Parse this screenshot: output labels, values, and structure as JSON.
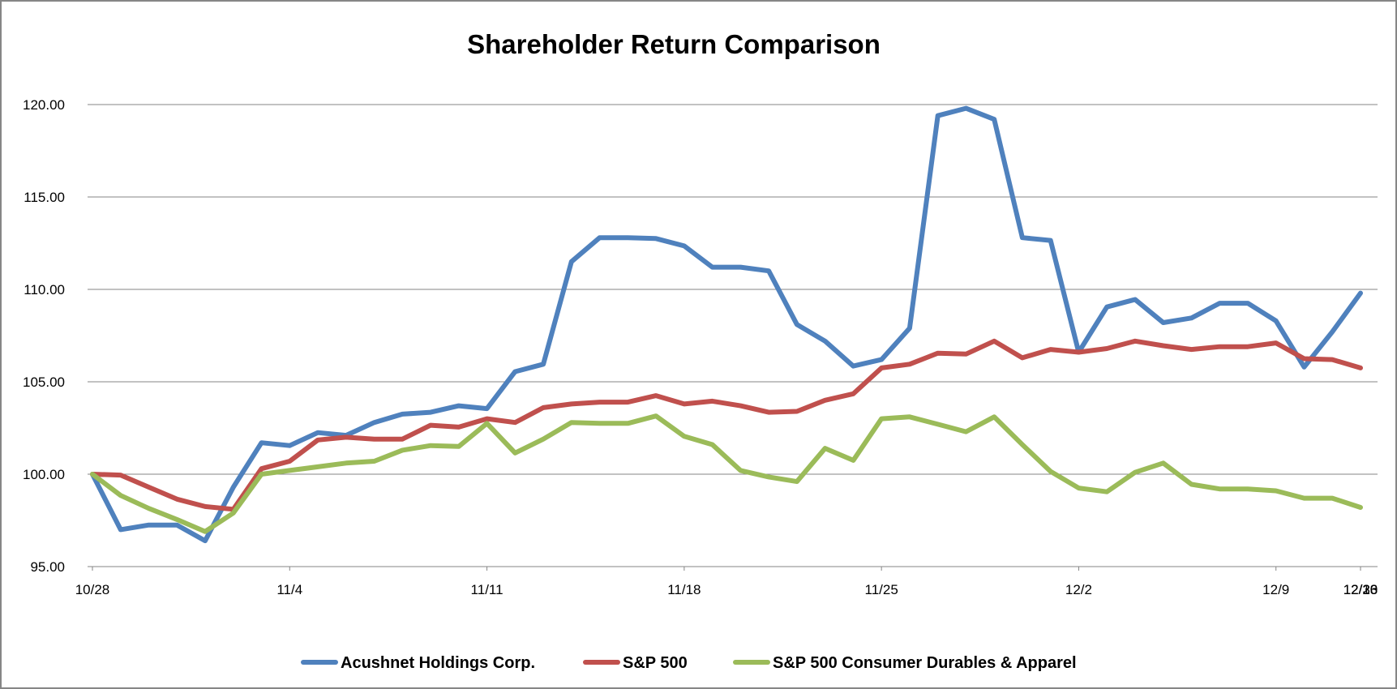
{
  "chart_data": {
    "type": "line",
    "title": "Shareholder Return Comparison",
    "xlabel": "",
    "ylabel": "",
    "ylim": [
      95,
      120
    ],
    "yticks": [
      "95.00",
      "100.00",
      "105.00",
      "110.00",
      "115.00",
      "120.00"
    ],
    "xticks": [
      "10/28",
      "11/4",
      "11/11",
      "11/18",
      "11/25",
      "12/2",
      "12/9",
      "12/16",
      "12/23",
      "12/30"
    ],
    "grid": "horizontal",
    "legend_position": "bottom",
    "series": [
      {
        "name": "Acushnet Holdings Corp.",
        "color": "#4F81BD",
        "values": [
          100.0,
          97.0,
          97.25,
          97.25,
          96.4,
          99.3,
          101.7,
          101.55,
          102.25,
          102.1,
          102.8,
          103.25,
          103.35,
          103.7,
          103.55,
          105.55,
          105.95,
          111.5,
          112.8,
          112.8,
          112.75,
          112.35,
          111.2,
          111.2,
          111.0,
          108.1,
          107.2,
          105.85,
          106.2,
          107.9,
          119.4,
          119.8,
          119.2,
          112.8,
          112.65,
          106.6,
          109.05,
          109.45,
          108.2,
          108.45,
          109.25,
          109.25,
          108.3,
          105.8,
          107.7,
          109.8
        ]
      },
      {
        "name": "S&P 500",
        "color": "#C0504D",
        "values": [
          100.0,
          99.95,
          99.3,
          98.65,
          98.25,
          98.1,
          100.3,
          100.7,
          101.85,
          102.0,
          101.9,
          101.9,
          102.65,
          102.55,
          103.0,
          102.8,
          103.6,
          103.8,
          103.9,
          103.9,
          104.25,
          103.8,
          103.95,
          103.7,
          103.35,
          103.4,
          104.0,
          104.35,
          105.75,
          105.95,
          106.55,
          106.5,
          107.2,
          106.3,
          106.75,
          106.6,
          106.8,
          107.2,
          106.95,
          106.75,
          106.9,
          106.9,
          107.1,
          106.25,
          106.2,
          105.75
        ]
      },
      {
        "name": "S&P 500 Consumer Durables & Apparel",
        "color": "#9BBB59",
        "values": [
          100.0,
          98.85,
          98.15,
          97.55,
          96.9,
          97.9,
          100.0,
          100.2,
          100.4,
          100.6,
          100.7,
          101.3,
          101.55,
          101.5,
          102.75,
          101.15,
          101.9,
          102.8,
          102.75,
          102.75,
          103.15,
          102.05,
          101.6,
          100.2,
          99.85,
          99.6,
          101.4,
          100.75,
          103.0,
          103.1,
          102.7,
          102.3,
          103.1,
          101.6,
          100.15,
          99.25,
          99.05,
          100.1,
          100.6,
          99.45,
          99.2,
          99.2,
          99.1,
          98.7,
          98.7,
          98.2
        ]
      }
    ]
  }
}
